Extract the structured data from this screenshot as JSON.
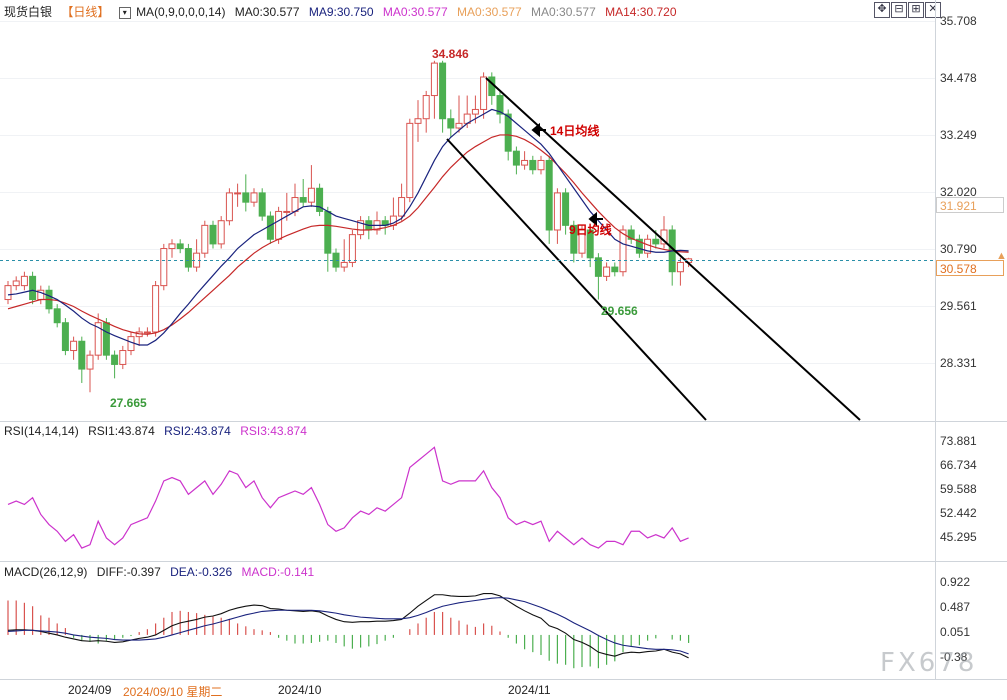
{
  "header": {
    "instrument": "现货白银",
    "period": "【日线】",
    "ma_params": "MA(0,9,0,0,0,14)",
    "ma0_a": "MA0:30.577",
    "ma9": "MA9:30.750",
    "ma0_b": "MA0:30.577",
    "ma0_c": "MA0:30.577",
    "ma0_d": "MA0:30.577",
    "ma14": "MA14:30.720"
  },
  "toolbar": {
    "icons": [
      "move-icon",
      "zoom-icon",
      "expand-icon",
      "close-icon"
    ]
  },
  "price_axis": {
    "ticks": [
      "35.708",
      "34.478",
      "33.249",
      "32.020",
      "30.790",
      "29.561",
      "28.331"
    ],
    "tag_high": "31.921",
    "tag_last": "30.578"
  },
  "annotations": {
    "high": "34.846",
    "low_sep": "27.665",
    "low_nov": "29.656",
    "ma14_label": "14日均线",
    "ma9_label": "9日均线"
  },
  "rsi": {
    "params": "RSI(14,14,14)",
    "rsi1": "RSI1:43.874",
    "rsi2": "RSI2:43.874",
    "rsi3": "RSI3:43.874",
    "ticks": [
      "73.881",
      "66.734",
      "59.588",
      "52.442",
      "45.295"
    ]
  },
  "macd": {
    "params": "MACD(26,12,9)",
    "diff": "DIFF:-0.397",
    "dea": "DEA:-0.326",
    "macd": "MACD:-0.141",
    "ticks": [
      "0.922",
      "0.487",
      "0.051",
      "-0.38"
    ]
  },
  "dates": {
    "sep": "2024/09",
    "cursor": "2024/09/10 星期二",
    "oct": "2024/10",
    "nov": "2024/11"
  },
  "watermark": "FX678",
  "colors": {
    "up": "#d9534f",
    "down": "#4caf50",
    "ma9": "#1a237e",
    "ma14": "#c62828",
    "rsi": "#cc33cc",
    "accent": "#e8a05a",
    "last_line": "#2a8fa8"
  },
  "chart_data": {
    "type": "candlestick",
    "price_scale": {
      "min": 27.1,
      "max": 35.708
    },
    "candles": [
      [
        29.7,
        30.0,
        29.6,
        30.1
      ],
      [
        30.0,
        30.1,
        29.9,
        30.2
      ],
      [
        30.0,
        30.2,
        29.9,
        30.3
      ],
      [
        30.2,
        29.7,
        29.6,
        30.3
      ],
      [
        29.7,
        29.9,
        29.6,
        30.0
      ],
      [
        29.9,
        29.5,
        29.4,
        30.0
      ],
      [
        29.5,
        29.2,
        29.1,
        29.6
      ],
      [
        29.2,
        28.6,
        28.5,
        29.3
      ],
      [
        28.6,
        28.8,
        28.4,
        28.9
      ],
      [
        28.8,
        28.2,
        27.9,
        28.9
      ],
      [
        28.2,
        28.5,
        27.7,
        28.6
      ],
      [
        28.5,
        29.2,
        28.4,
        29.4
      ],
      [
        29.2,
        28.5,
        28.4,
        29.3
      ],
      [
        28.5,
        28.3,
        28.0,
        28.6
      ],
      [
        28.3,
        28.6,
        28.2,
        28.7
      ],
      [
        28.6,
        28.9,
        28.5,
        29.0
      ],
      [
        28.9,
        29.0,
        28.7,
        29.1
      ],
      [
        29.0,
        29.0,
        28.9,
        29.1
      ],
      [
        29.0,
        30.0,
        28.9,
        30.1
      ],
      [
        30.0,
        30.8,
        29.9,
        30.9
      ],
      [
        30.8,
        30.9,
        30.6,
        31.0
      ],
      [
        30.9,
        30.8,
        30.7,
        31.0
      ],
      [
        30.8,
        30.4,
        30.3,
        30.9
      ],
      [
        30.4,
        30.7,
        30.3,
        31.0
      ],
      [
        30.7,
        31.3,
        30.6,
        31.4
      ],
      [
        31.3,
        30.9,
        30.8,
        31.4
      ],
      [
        30.9,
        31.4,
        30.8,
        31.5
      ],
      [
        31.4,
        32.0,
        31.3,
        32.1
      ],
      [
        32.0,
        32.0,
        31.7,
        32.2
      ],
      [
        32.0,
        31.8,
        31.6,
        32.4
      ],
      [
        31.8,
        32.0,
        31.7,
        32.1
      ],
      [
        32.0,
        31.5,
        31.4,
        32.1
      ],
      [
        31.5,
        31.0,
        30.9,
        31.6
      ],
      [
        31.0,
        31.6,
        30.9,
        31.7
      ],
      [
        31.6,
        31.6,
        31.4,
        32.0
      ],
      [
        31.6,
        31.9,
        31.5,
        32.2
      ],
      [
        31.9,
        31.8,
        31.7,
        32.3
      ],
      [
        31.8,
        32.1,
        31.7,
        32.6
      ],
      [
        32.1,
        31.6,
        31.5,
        32.2
      ],
      [
        31.6,
        30.7,
        30.3,
        31.7
      ],
      [
        30.7,
        30.4,
        30.3,
        30.8
      ],
      [
        30.4,
        30.5,
        30.3,
        31.0
      ],
      [
        30.5,
        31.1,
        30.4,
        31.2
      ],
      [
        31.1,
        31.4,
        31.0,
        31.5
      ],
      [
        31.4,
        31.2,
        31.0,
        31.5
      ],
      [
        31.2,
        31.4,
        31.1,
        31.6
      ],
      [
        31.4,
        31.3,
        31.1,
        31.5
      ],
      [
        31.3,
        31.5,
        31.2,
        31.9
      ],
      [
        31.5,
        31.9,
        31.4,
        32.2
      ],
      [
        31.9,
        33.5,
        31.8,
        33.6
      ],
      [
        33.5,
        33.6,
        33.1,
        34.0
      ],
      [
        33.6,
        34.1,
        33.3,
        34.2
      ],
      [
        34.1,
        34.8,
        33.6,
        34.85
      ],
      [
        34.8,
        33.6,
        33.3,
        34.85
      ],
      [
        33.6,
        33.4,
        33.2,
        33.8
      ],
      [
        33.4,
        33.5,
        33.3,
        34.1
      ],
      [
        33.5,
        33.7,
        33.4,
        34.1
      ],
      [
        33.7,
        33.8,
        33.5,
        34.1
      ],
      [
        33.8,
        34.5,
        33.6,
        34.6
      ],
      [
        34.5,
        34.1,
        33.9,
        34.6
      ],
      [
        34.1,
        33.7,
        33.5,
        34.2
      ],
      [
        33.7,
        32.9,
        32.7,
        33.8
      ],
      [
        32.9,
        32.6,
        32.4,
        33.0
      ],
      [
        32.6,
        32.7,
        32.5,
        32.9
      ],
      [
        32.7,
        32.5,
        32.4,
        32.8
      ],
      [
        32.5,
        32.7,
        32.4,
        32.8
      ],
      [
        32.7,
        31.2,
        30.9,
        32.8
      ],
      [
        31.2,
        32.0,
        30.9,
        32.1
      ],
      [
        32.0,
        31.3,
        31.1,
        32.1
      ],
      [
        31.3,
        30.7,
        30.5,
        31.4
      ],
      [
        30.7,
        31.2,
        30.6,
        31.3
      ],
      [
        31.2,
        30.6,
        30.4,
        31.3
      ],
      [
        30.6,
        30.2,
        29.7,
        30.7
      ],
      [
        30.2,
        30.4,
        30.1,
        30.5
      ],
      [
        30.4,
        30.3,
        30.2,
        30.5
      ],
      [
        30.3,
        31.2,
        30.2,
        31.3
      ],
      [
        31.2,
        31.0,
        30.9,
        31.3
      ],
      [
        31.0,
        30.7,
        30.6,
        31.1
      ],
      [
        30.7,
        31.0,
        30.6,
        31.1
      ],
      [
        31.0,
        30.9,
        30.8,
        31.2
      ],
      [
        30.9,
        31.2,
        30.8,
        31.5
      ],
      [
        31.2,
        30.3,
        30.0,
        31.3
      ],
      [
        30.3,
        30.5,
        30.0,
        30.6
      ],
      [
        30.5,
        30.578,
        30.4,
        30.6
      ]
    ],
    "ma9": [
      29.8,
      29.82,
      29.86,
      29.9,
      29.85,
      29.78,
      29.7,
      29.58,
      29.45,
      29.3,
      29.18,
      29.1,
      29.0,
      28.92,
      28.85,
      28.78,
      28.72,
      28.72,
      28.82,
      28.98,
      29.18,
      29.4,
      29.6,
      29.82,
      30.02,
      30.22,
      30.42,
      30.6,
      30.8,
      30.95,
      31.1,
      31.2,
      31.3,
      31.4,
      31.5,
      31.6,
      31.7,
      31.72,
      31.7,
      31.6,
      31.5,
      31.45,
      31.4,
      31.35,
      31.3,
      31.3,
      31.3,
      31.35,
      31.45,
      31.7,
      32.0,
      32.35,
      32.7,
      33.0,
      33.2,
      33.35,
      33.5,
      33.6,
      33.7,
      33.8,
      33.75,
      33.65,
      33.5,
      33.35,
      33.2,
      33.05,
      32.85,
      32.6,
      32.35,
      32.1,
      31.85,
      31.6,
      31.4,
      31.2,
      31.0,
      30.9,
      30.85,
      30.8,
      30.75,
      30.72,
      30.72,
      30.75,
      30.76,
      30.75
    ],
    "ma14": [
      29.5,
      29.55,
      29.6,
      29.65,
      29.7,
      29.7,
      29.68,
      29.62,
      29.55,
      29.45,
      29.36,
      29.28,
      29.2,
      29.12,
      29.05,
      29.0,
      28.96,
      28.95,
      28.98,
      29.05,
      29.15,
      29.28,
      29.42,
      29.58,
      29.74,
      29.9,
      30.06,
      30.22,
      30.4,
      30.55,
      30.7,
      30.82,
      30.92,
      31.0,
      31.08,
      31.15,
      31.22,
      31.28,
      31.3,
      31.3,
      31.28,
      31.25,
      31.22,
      31.2,
      31.2,
      31.22,
      31.25,
      31.3,
      31.38,
      31.5,
      31.68,
      31.9,
      32.12,
      32.35,
      32.55,
      32.72,
      32.88,
      33.0,
      33.1,
      33.2,
      33.25,
      33.25,
      33.22,
      33.15,
      33.05,
      32.92,
      32.78,
      32.6,
      32.42,
      32.22,
      32.0,
      31.8,
      31.6,
      31.42,
      31.25,
      31.12,
      31.02,
      30.95,
      30.88,
      30.82,
      30.78,
      30.75,
      30.73,
      30.72
    ],
    "channel_upper": [
      [
        486,
        78
      ],
      [
        860,
        420
      ]
    ],
    "channel_lower": [
      [
        447,
        139
      ],
      [
        706,
        420
      ]
    ],
    "rsi_scale": {
      "min": 40,
      "max": 76
    },
    "rsi_series": [
      55,
      56,
      55,
      57,
      52,
      49,
      47,
      44,
      46,
      42,
      43,
      50,
      45,
      43,
      45,
      49,
      50,
      51,
      56,
      62,
      63,
      62,
      58,
      60,
      62,
      58,
      61,
      65,
      64,
      60,
      62,
      57,
      54,
      57,
      58,
      59,
      58,
      60,
      55,
      49,
      47,
      48,
      51,
      53,
      52,
      54,
      53,
      55,
      57,
      66,
      68,
      70,
      72,
      62,
      61,
      62,
      62,
      62,
      65,
      60,
      57,
      51,
      49,
      50,
      49,
      50,
      44,
      47,
      45,
      43,
      45,
      43,
      42,
      44,
      44,
      43,
      47,
      47,
      45,
      46,
      45,
      48,
      44,
      45
    ],
    "macd_scale": {
      "min": -0.6,
      "max": 1.1
    },
    "diff": [
      0.08,
      0.09,
      0.09,
      0.08,
      0.06,
      0.03,
      0.0,
      -0.04,
      -0.07,
      -0.1,
      -0.11,
      -0.1,
      -0.11,
      -0.13,
      -0.12,
      -0.09,
      -0.06,
      -0.04,
      0.0,
      0.08,
      0.16,
      0.21,
      0.24,
      0.27,
      0.31,
      0.33,
      0.37,
      0.43,
      0.47,
      0.5,
      0.52,
      0.51,
      0.46,
      0.45,
      0.43,
      0.42,
      0.41,
      0.42,
      0.4,
      0.33,
      0.27,
      0.23,
      0.22,
      0.23,
      0.23,
      0.24,
      0.24,
      0.25,
      0.27,
      0.38,
      0.5,
      0.6,
      0.7,
      0.7,
      0.68,
      0.67,
      0.67,
      0.68,
      0.72,
      0.72,
      0.68,
      0.59,
      0.5,
      0.42,
      0.35,
      0.29,
      0.16,
      0.11,
      0.03,
      -0.08,
      -0.13,
      -0.2,
      -0.3,
      -0.34,
      -0.37,
      -0.32,
      -0.3,
      -0.31,
      -0.29,
      -0.28,
      -0.25,
      -0.3,
      -0.33,
      -0.4
    ],
    "dea": [
      0.06,
      0.07,
      0.08,
      0.08,
      0.07,
      0.06,
      0.05,
      0.03,
      0.0,
      -0.02,
      -0.04,
      -0.05,
      -0.06,
      -0.08,
      -0.09,
      -0.09,
      -0.09,
      -0.08,
      -0.07,
      -0.04,
      0.0,
      0.04,
      0.08,
      0.12,
      0.16,
      0.19,
      0.23,
      0.27,
      0.31,
      0.35,
      0.38,
      0.41,
      0.42,
      0.43,
      0.43,
      0.43,
      0.43,
      0.43,
      0.42,
      0.4,
      0.38,
      0.35,
      0.33,
      0.31,
      0.3,
      0.29,
      0.28,
      0.28,
      0.28,
      0.3,
      0.34,
      0.39,
      0.45,
      0.5,
      0.53,
      0.56,
      0.58,
      0.6,
      0.62,
      0.64,
      0.65,
      0.64,
      0.61,
      0.58,
      0.53,
      0.48,
      0.42,
      0.36,
      0.29,
      0.21,
      0.14,
      0.07,
      -0.01,
      -0.08,
      -0.14,
      -0.18,
      -0.2,
      -0.22,
      -0.24,
      -0.25,
      -0.25,
      -0.26,
      -0.28,
      -0.33
    ],
    "macd_bars": [
      0.6,
      0.6,
      0.56,
      0.5,
      0.34,
      0.3,
      0.2,
      0.12,
      -0.05,
      -0.1,
      -0.12,
      -0.15,
      -0.1,
      -0.08,
      -0.05,
      -0.02,
      0.05,
      0.1,
      0.2,
      0.3,
      0.4,
      0.42,
      0.4,
      0.38,
      0.35,
      0.32,
      0.3,
      0.28,
      0.2,
      0.15,
      0.1,
      0.08,
      0.05,
      -0.05,
      -0.1,
      -0.15,
      -0.15,
      -0.14,
      -0.12,
      -0.1,
      -0.14,
      -0.2,
      -0.24,
      -0.22,
      -0.2,
      -0.16,
      -0.1,
      -0.05,
      0.0,
      0.1,
      0.2,
      0.3,
      0.4,
      0.4,
      0.3,
      0.25,
      0.18,
      0.14,
      0.2,
      0.16,
      0.06,
      -0.05,
      -0.15,
      -0.25,
      -0.3,
      -0.35,
      -0.45,
      -0.5,
      -0.52,
      -0.58,
      -0.56,
      -0.55,
      -0.58,
      -0.52,
      -0.46,
      -0.3,
      -0.2,
      -0.18,
      -0.1,
      -0.06,
      0.0,
      -0.08,
      -0.1,
      -0.14
    ]
  }
}
